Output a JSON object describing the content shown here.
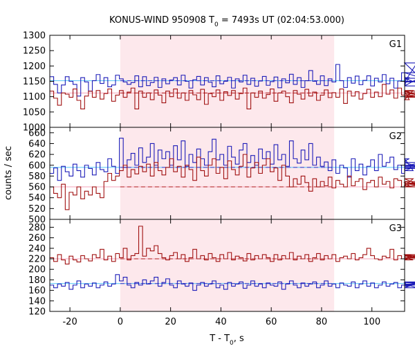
{
  "chart_data": {
    "type": "line",
    "title_prefix": "KONUS-WIND 950908 T",
    "title_sub": "0",
    "title_suffix": " = 7493s UT (02:04:53.000)",
    "xlabel_prefix": "T - T",
    "xlabel_sub": "0",
    "xlabel_suffix": ", s",
    "ylabel": "counts / sec",
    "xlim": [
      -28,
      113
    ],
    "x_ticks": [
      -20,
      0,
      20,
      40,
      60,
      80,
      100
    ],
    "shaded_interval": [
      0,
      85
    ],
    "panels": [
      {
        "name": "G1",
        "ylim": [
          1000,
          1300
        ],
        "y_ticks": [
          1000,
          1050,
          1100,
          1150,
          1200,
          1250,
          1300
        ],
        "blue_background": 1152,
        "red_background": 1112,
        "series": [
          {
            "color": "#1c1cb8",
            "x0": -28,
            "step": 1.536,
            "values": [
              1165,
              1140,
              1112,
              1138,
              1165,
              1150,
              1140,
              1102,
              1162,
              1148,
              1118,
              1152,
              1172,
              1143,
              1162,
              1132,
              1138,
              1170,
              1158,
              1148,
              1140,
              1146,
              1168,
              1132,
              1165,
              1136,
              1146,
              1163,
              1130,
              1158,
              1142,
              1154,
              1162,
              1138,
              1170,
              1150,
              1128,
              1155,
              1166,
              1138,
              1162,
              1147,
              1132,
              1168,
              1142,
              1150,
              1163,
              1128,
              1158,
              1148,
              1170,
              1140,
              1160,
              1134,
              1151,
              1166,
              1137,
              1149,
              1164,
              1129,
              1158,
              1145,
              1173,
              1140,
              1162,
              1130,
              1152,
              1185,
              1150,
              1140,
              1168,
              1136,
              1158,
              1148,
              1205,
              1152,
              1130,
              1162,
              1144,
              1167,
              1139,
              1153,
              1168,
              1135,
              1160,
              1148,
              1172,
              1142,
              1160,
              1128,
              1151,
              1178,
              1140,
              1162,
              1148,
              1210,
              1160,
              1135,
              1178,
              1150
            ]
          },
          {
            "color": "#a01010",
            "x0": -28,
            "step": 1.536,
            "values": [
              1118,
              1095,
              1072,
              1112,
              1108,
              1098,
              1125,
              1088,
              1060,
              1102,
              1118,
              1098,
              1120,
              1092,
              1110,
              1125,
              1085,
              1105,
              1120,
              1098,
              1115,
              1128,
              1060,
              1118,
              1098,
              1112,
              1090,
              1122,
              1105,
              1080,
              1118,
              1100,
              1125,
              1095,
              1112,
              1088,
              1120,
              1106,
              1090,
              1124,
              1075,
              1110,
              1100,
              1122,
              1088,
              1116,
              1104,
              1120,
              1092,
              1110,
              1128,
              1060,
              1112,
              1098,
              1118,
              1095,
              1107,
              1125,
              1085,
              1112,
              1118,
              1100,
              1080,
              1120,
              1108,
              1092,
              1124,
              1102,
              1115,
              1088,
              1105,
              1122,
              1097,
              1113,
              1098,
              1125,
              1078,
              1118,
              1102,
              1116,
              1092,
              1110,
              1124,
              1098,
              1115,
              1100,
              1140,
              1108,
              1122,
              1095,
              1128,
              1105,
              1116,
              1090,
              1120,
              1104,
              1118,
              1098,
              1112,
              1100
            ]
          }
        ]
      },
      {
        "name": "G2",
        "ylim": [
          500,
          670
        ],
        "y_ticks": [
          500,
          520,
          540,
          560,
          580,
          600,
          620,
          640,
          660
        ],
        "blue_background": 596,
        "red_background": 560,
        "series": [
          {
            "color": "#1c1cb8",
            "x0": -28,
            "step": 1.536,
            "values": [
              585,
              595,
              572,
              598,
              588,
              580,
              602,
              590,
              578,
              600,
              594,
              582,
              605,
              592,
              588,
              612,
              598,
              585,
              650,
              596,
              610,
              622,
              600,
              632,
              605,
              615,
              640,
              600,
              628,
              612,
              625,
              600,
              636,
              610,
              645,
              598,
              620,
              605,
              630,
              612,
              600,
              625,
              648,
              610,
              620,
              600,
              635,
              615,
              602,
              628,
              640,
              605,
              618,
              600,
              630,
              612,
              625,
              602,
              638,
              610,
              620,
              598,
              645,
              612,
              604,
              628,
              610,
              640,
              600,
              615,
              598,
              606,
              590,
              610,
              585,
              600,
              595,
              578,
              612,
              590,
              602,
              582,
              598,
              610,
              590,
              620,
              598,
              605,
              615,
              592,
              600,
              585,
              608,
              612,
              590,
              598,
              605,
              594,
              600,
              596
            ]
          },
          {
            "color": "#a01010",
            "x0": -28,
            "step": 1.536,
            "values": [
              560,
              548,
              540,
              565,
              518,
              550,
              545,
              560,
              538,
              552,
              545,
              560,
              548,
              540,
              570,
              585,
              572,
              580,
              590,
              600,
              578,
              592,
              584,
              598,
              588,
              602,
              580,
              605,
              590,
              582,
              596,
              612,
              588,
              598,
              578,
              600,
              592,
              572,
              615,
              590,
              580,
              600,
              612,
              585,
              596,
              575,
              608,
              592,
              582,
              598,
              620,
              578,
              595,
              605,
              585,
              600,
              612,
              588,
              595,
              572,
              600,
              580,
              560,
              575,
              565,
              580,
              568,
              552,
              575,
              560,
              570,
              562,
              578,
              558,
              572,
              565,
              560,
              580,
              562,
              570,
              575,
              555,
              568,
              572,
              560,
              578,
              565,
              570,
              558,
              575,
              572,
              560,
              568,
              562,
              575,
              565,
              570,
              560,
              566,
              560
            ]
          }
        ]
      },
      {
        "name": "G3",
        "ylim": [
          120,
          295
        ],
        "y_ticks": [
          120,
          140,
          160,
          180,
          200,
          220,
          240,
          260,
          280
        ],
        "blue_background": 173,
        "red_background": 220,
        "series": [
          {
            "color": "#1c1cb8",
            "x0": -28,
            "step": 1.536,
            "values": [
              170,
              165,
              172,
              168,
              175,
              162,
              170,
              178,
              165,
              172,
              168,
              174,
              165,
              170,
              176,
              168,
              172,
              190,
              178,
              185,
              170,
              165,
              175,
              170,
              180,
              172,
              178,
              185,
              168,
              175,
              182,
              170,
              165,
              178,
              172,
              168,
              174,
              160,
              170,
              175,
              168,
              172,
              178,
              165,
              170,
              162,
              175,
              168,
              172,
              176,
              164,
              170,
              178,
              168,
              172,
              165,
              174,
              170,
              168,
              176,
              162,
              172,
              178,
              170,
              165,
              174,
              168,
              172,
              176,
              165,
              170,
              178,
              168,
              172,
              165,
              174,
              170,
              168,
              176,
              165,
              172,
              178,
              168,
              174,
              165,
              170,
              176,
              168,
              172,
              175,
              165,
              170,
              174,
              168,
              172,
              165,
              176,
              170,
              175,
              172
            ]
          },
          {
            "color": "#a01010",
            "x0": -28,
            "step": 1.536,
            "values": [
              222,
              215,
              228,
              218,
              210,
              225,
              218,
              214,
              226,
              220,
              216,
              228,
              222,
              238,
              218,
              225,
              215,
              230,
              222,
              240,
              218,
              226,
              230,
              282,
              225,
              240,
              235,
              245,
              230,
              222,
              218,
              226,
              232,
              220,
              228,
              215,
              222,
              238,
              220,
              226,
              218,
              230,
              222,
              215,
              228,
              220,
              232,
              218,
              225,
              222,
              216,
              230,
              218,
              226,
              220,
              228,
              222,
              215,
              228,
              218,
              226,
              220,
              232,
              218,
              225,
              220,
              228,
              215,
              222,
              230,
              218,
              226,
              220,
              228,
              215,
              222,
              225,
              220,
              230,
              218,
              222,
              228,
              240,
              226,
              220,
              218,
              225,
              222,
              238,
              218,
              226,
              220,
              228,
              222,
              218,
              226,
              220,
              228,
              222,
              225
            ]
          }
        ]
      }
    ]
  }
}
